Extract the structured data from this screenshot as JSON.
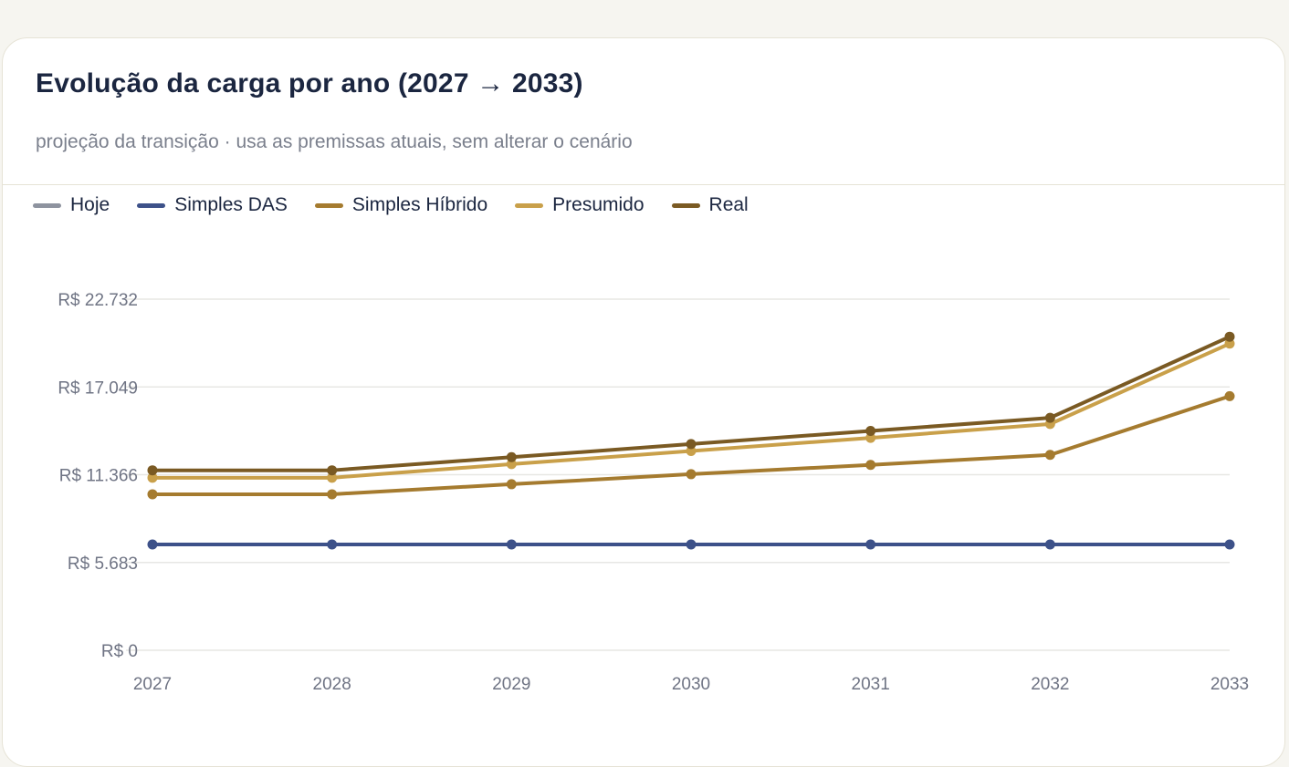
{
  "header": {
    "title": "Evolução da carga por ano (2027 → 2033)",
    "subtitle": "projeção da transição · usa as premissas atuais, sem alterar o cenário"
  },
  "legend": [
    {
      "label": "Hoje",
      "color": "#8e939f"
    },
    {
      "label": "Simples DAS",
      "color": "#3d5189"
    },
    {
      "label": "Simples Híbrido",
      "color": "#a57b2f"
    },
    {
      "label": "Presumido",
      "color": "#c9a04a"
    },
    {
      "label": "Real",
      "color": "#7a5a23"
    }
  ],
  "chart_data": {
    "type": "line",
    "x": [
      "2027",
      "2028",
      "2029",
      "2030",
      "2031",
      "2032",
      "2033"
    ],
    "y_ticks": [
      "R$ 0",
      "R$ 5.683",
      "R$ 11.366",
      "R$ 17.049",
      "R$ 22.732"
    ],
    "y_tick_values": [
      0,
      5683,
      11366,
      17049,
      22732
    ],
    "ylim": [
      0,
      22732
    ],
    "grid": true,
    "legend_position": "top-left",
    "series": [
      {
        "name": "Simples DAS",
        "color": "#3d5189",
        "values": [
          6850,
          6850,
          6850,
          6850,
          6850,
          6850,
          6850
        ]
      },
      {
        "name": "Simples Híbrido",
        "color": "#a57b2f",
        "values": [
          10100,
          10100,
          10750,
          11400,
          12000,
          12650,
          16450
        ]
      },
      {
        "name": "Presumido",
        "color": "#c9a04a",
        "values": [
          11170,
          11170,
          12050,
          12900,
          13750,
          14650,
          19850
        ]
      },
      {
        "name": "Real",
        "color": "#7a5a23",
        "values": [
          11650,
          11650,
          12500,
          13350,
          14200,
          15050,
          20300
        ]
      }
    ]
  }
}
